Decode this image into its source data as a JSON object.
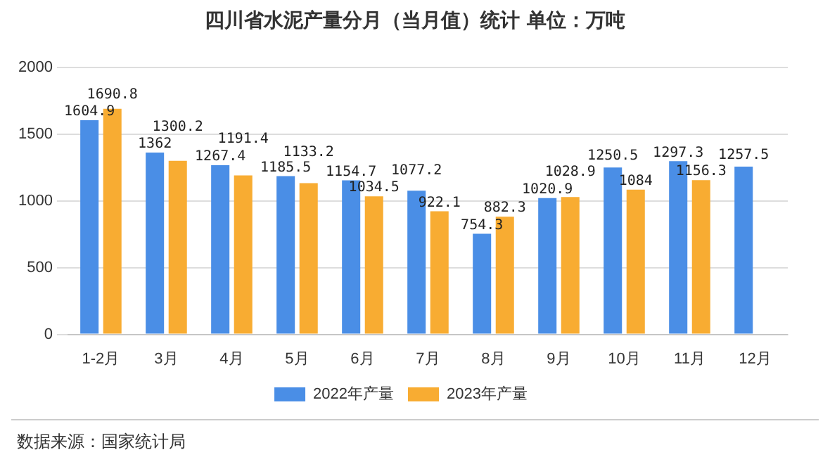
{
  "chart_data": {
    "type": "bar",
    "title": "四川省水泥产量分月（当月值）统计  单位：万吨",
    "categories": [
      "1-2月",
      "3月",
      "4月",
      "5月",
      "6月",
      "7月",
      "8月",
      "9月",
      "10月",
      "11月",
      "12月"
    ],
    "series": [
      {
        "name": "2022年产量",
        "color": "#4a8ee6",
        "values": [
          1604.9,
          1362,
          1267.4,
          1185.5,
          1154.7,
          1077.2,
          754.3,
          1020.9,
          1250.5,
          1297.3,
          1257.5
        ]
      },
      {
        "name": "2023年产量",
        "color": "#f8ac32",
        "values": [
          1690.8,
          1300.2,
          1191.4,
          1133.2,
          1034.5,
          922.1,
          882.3,
          1028.9,
          1084,
          1156.3,
          null
        ]
      }
    ],
    "ylim": [
      0,
      2000
    ],
    "yticks": [
      0,
      500,
      1000,
      1500,
      2000
    ],
    "grid": "y",
    "legend": "bottom",
    "data_labels": true,
    "annotations": [
      "数据来源：国家统计局"
    ]
  }
}
